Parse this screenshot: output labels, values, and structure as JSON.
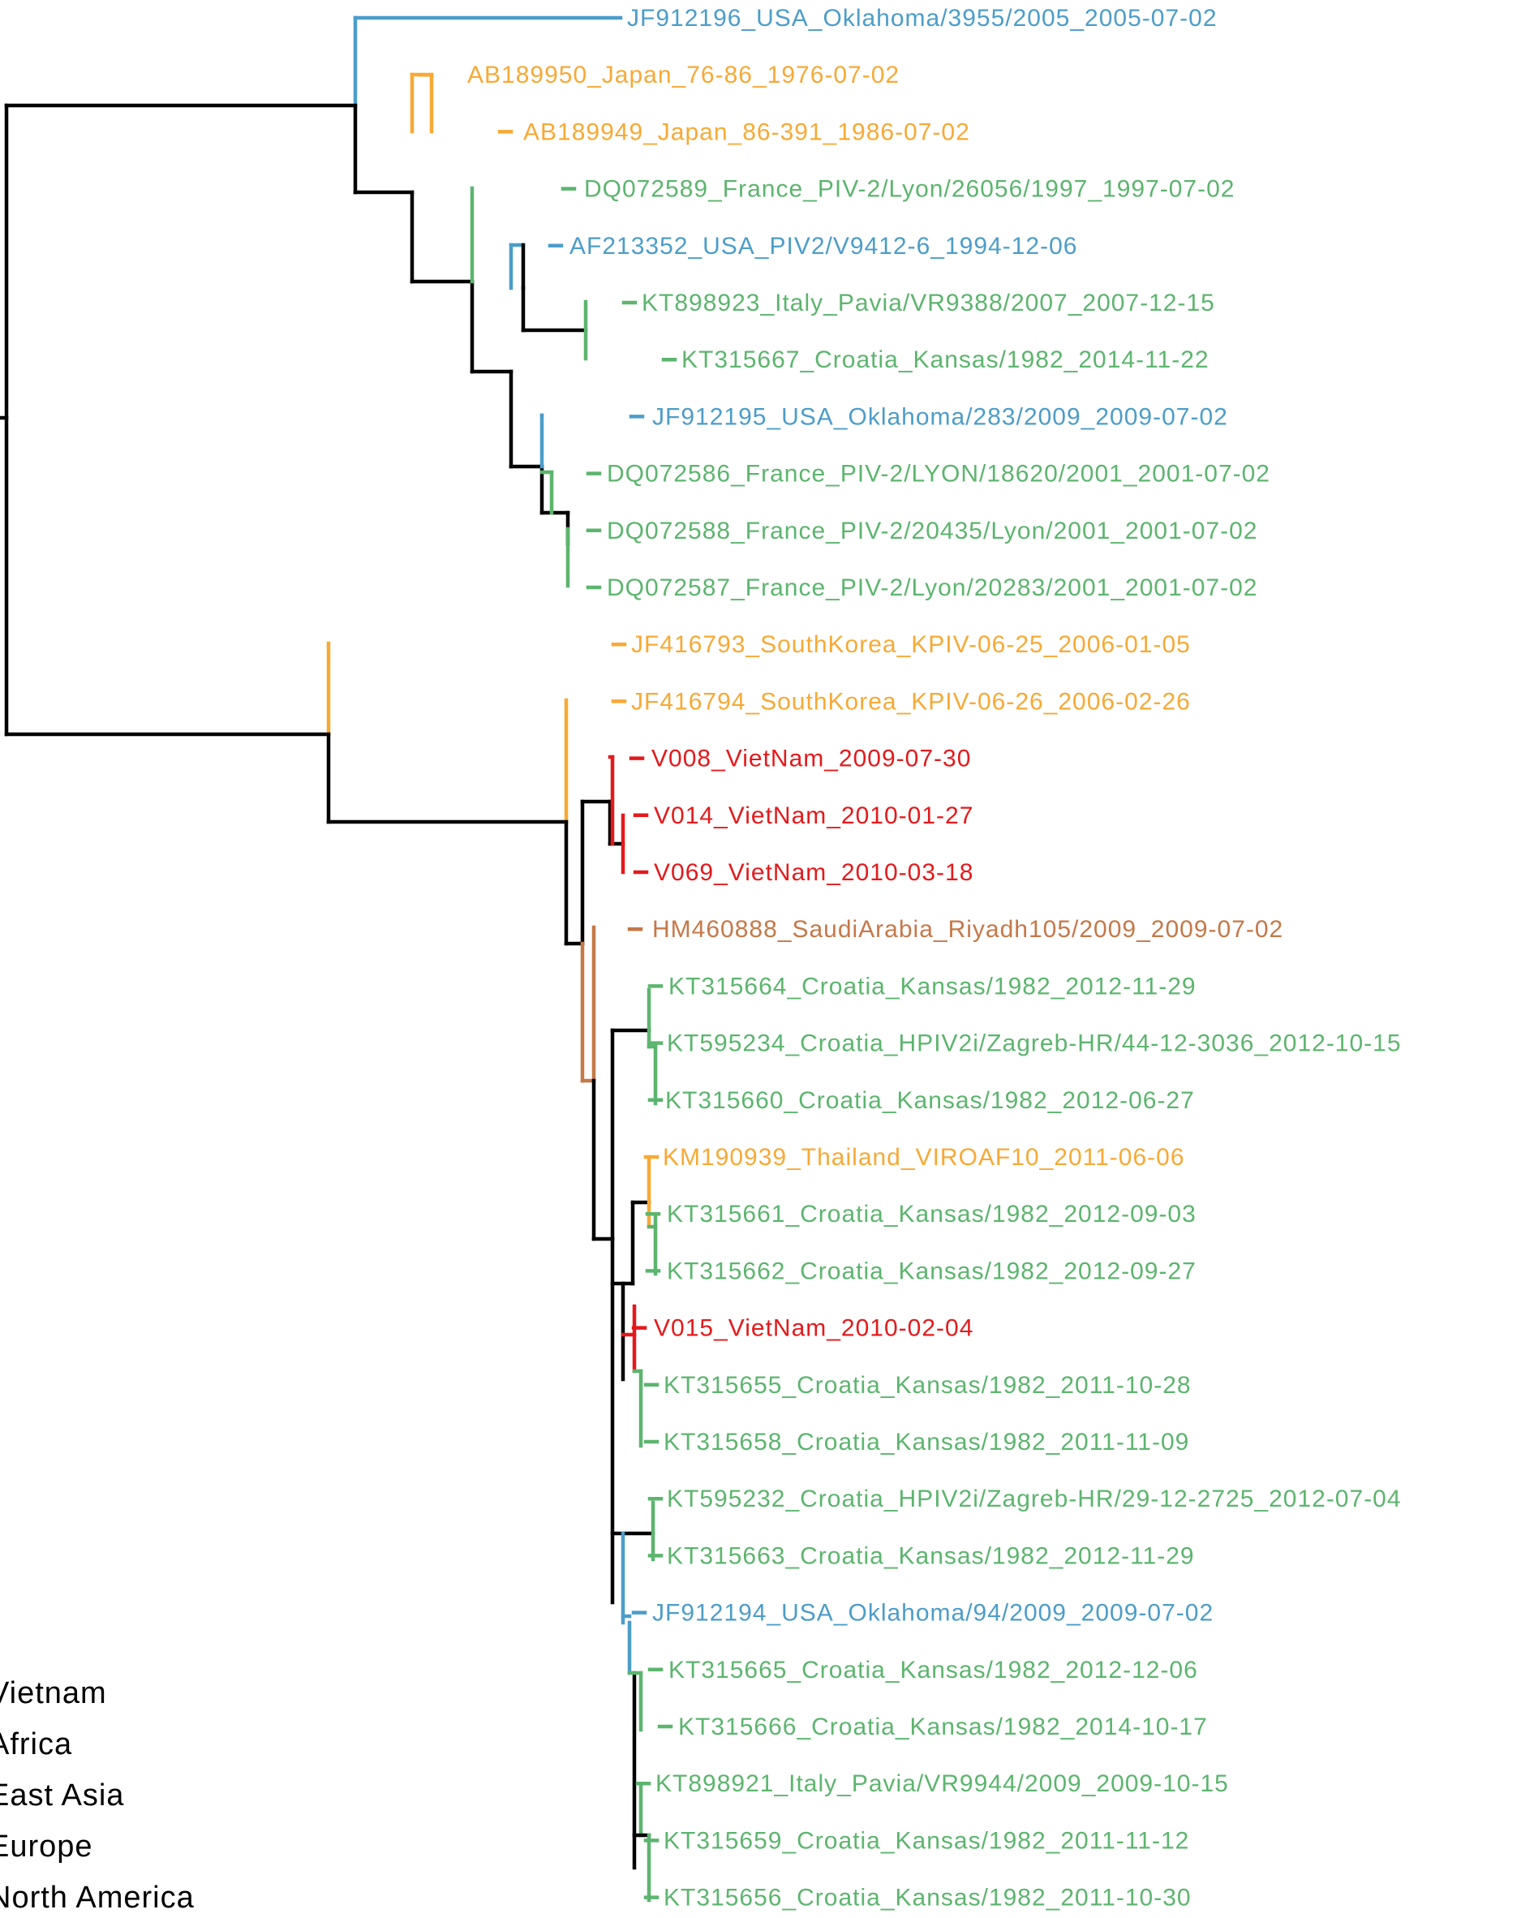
{
  "colors": {
    "black": "#000000",
    "vietnam": "#e31a1c",
    "africa": "#c57848",
    "east_asia": "#f7a935",
    "europe": "#5cb56e",
    "north_america": "#4c9dc9"
  },
  "tips": [
    {
      "label": "JF912196_USA_Oklahoma/3955/2005_2005-07-02",
      "region": "north_america"
    },
    {
      "label": "AB189950_Japan_76-86_1976-07-02",
      "region": "east_asia"
    },
    {
      "label": "AB189949_Japan_86-391_1986-07-02",
      "region": "east_asia"
    },
    {
      "label": "DQ072589_France_PIV-2/Lyon/26056/1997_1997-07-02",
      "region": "europe"
    },
    {
      "label": "AF213352_USA_PIV2/V9412-6_1994-12-06",
      "region": "north_america"
    },
    {
      "label": "KT898923_Italy_Pavia/VR9388/2007_2007-12-15",
      "region": "europe"
    },
    {
      "label": "KT315667_Croatia_Kansas/1982_2014-11-22",
      "region": "europe"
    },
    {
      "label": "JF912195_USA_Oklahoma/283/2009_2009-07-02",
      "region": "north_america"
    },
    {
      "label": "DQ072586_France_PIV-2/LYON/18620/2001_2001-07-02",
      "region": "europe"
    },
    {
      "label": "DQ072588_France_PIV-2/20435/Lyon/2001_2001-07-02",
      "region": "europe"
    },
    {
      "label": "DQ072587_France_PIV-2/Lyon/20283/2001_2001-07-02",
      "region": "europe"
    },
    {
      "label": "JF416793_SouthKorea_KPIV-06-25_2006-01-05",
      "region": "east_asia"
    },
    {
      "label": "JF416794_SouthKorea_KPIV-06-26_2006-02-26",
      "region": "east_asia"
    },
    {
      "label": "V008_VietNam_2009-07-30",
      "region": "vietnam"
    },
    {
      "label": "V014_VietNam_2010-01-27",
      "region": "vietnam"
    },
    {
      "label": "V069_VietNam_2010-03-18",
      "region": "vietnam"
    },
    {
      "label": "HM460888_SaudiArabia_Riyadh105/2009_2009-07-02",
      "region": "africa"
    },
    {
      "label": "KT315664_Croatia_Kansas/1982_2012-11-29",
      "region": "europe"
    },
    {
      "label": "KT595234_Croatia_HPIV2i/Zagreb-HR/44-12-3036_2012-10-15",
      "region": "europe"
    },
    {
      "label": "KT315660_Croatia_Kansas/1982_2012-06-27",
      "region": "europe"
    },
    {
      "label": "KM190939_Thailand_VIROAF10_2011-06-06",
      "region": "east_asia"
    },
    {
      "label": "KT315661_Croatia_Kansas/1982_2012-09-03",
      "region": "europe"
    },
    {
      "label": "KT315662_Croatia_Kansas/1982_2012-09-27",
      "region": "europe"
    },
    {
      "label": "V015_VietNam_2010-02-04",
      "region": "vietnam"
    },
    {
      "label": "KT315655_Croatia_Kansas/1982_2011-10-28",
      "region": "europe"
    },
    {
      "label": "KT315658_Croatia_Kansas/1982_2011-11-09",
      "region": "europe"
    },
    {
      "label": "KT595232_Croatia_HPIV2i/Zagreb-HR/29-12-2725_2012-07-04",
      "region": "europe"
    },
    {
      "label": "KT315663_Croatia_Kansas/1982_2012-11-29",
      "region": "europe"
    },
    {
      "label": "JF912194_USA_Oklahoma/94/2009_2009-07-02",
      "region": "north_america"
    },
    {
      "label": "KT315665_Croatia_Kansas/1982_2012-12-06",
      "region": "europe"
    },
    {
      "label": "KT315666_Croatia_Kansas/1982_2014-10-17",
      "region": "europe"
    },
    {
      "label": "KT898921_Italy_Pavia/VR9944/2009_2009-10-15",
      "region": "europe"
    },
    {
      "label": "KT315659_Croatia_Kansas/1982_2011-11-12",
      "region": "europe"
    },
    {
      "label": "KT315656_Croatia_Kansas/1982_2011-10-30",
      "region": "europe"
    }
  ],
  "legend": [
    {
      "label": "Vietnam",
      "region": "vietnam"
    },
    {
      "label": "Africa",
      "region": "africa"
    },
    {
      "label": "East Asia",
      "region": "east_asia"
    },
    {
      "label": "Europe",
      "region": "europe"
    },
    {
      "label": "North America",
      "region": "north_america"
    }
  ]
}
